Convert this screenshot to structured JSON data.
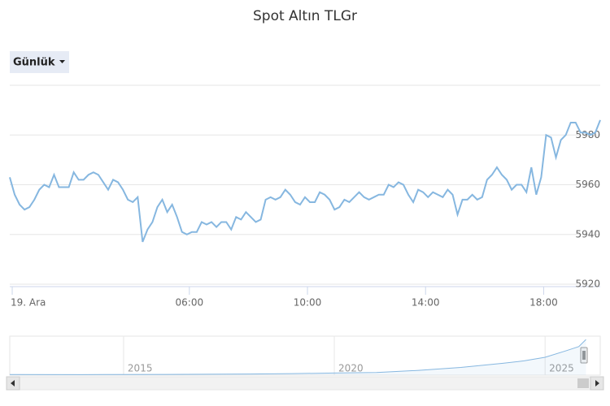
{
  "chart_data": {
    "type": "line",
    "title": "Spot Altın TLGr",
    "range_selector": "Günlük",
    "color": "#86b7e0",
    "x": [
      -5,
      5,
      15,
      25,
      35,
      45,
      55,
      65,
      75,
      85,
      95,
      105,
      115,
      125,
      135,
      145,
      155,
      165,
      175,
      185,
      195,
      205,
      215,
      225,
      235,
      245,
      255,
      265,
      275,
      285,
      295,
      305,
      315,
      325,
      335,
      345,
      355,
      365,
      375,
      385,
      395,
      405,
      415,
      425,
      435,
      445,
      455,
      465,
      475,
      485,
      495,
      505,
      515,
      525,
      535,
      545,
      555,
      565,
      575,
      585,
      595,
      605,
      615,
      625,
      635,
      645,
      655,
      665,
      675,
      685,
      695,
      705,
      715,
      725,
      735,
      745,
      755,
      765,
      775,
      785,
      795,
      805,
      815,
      825,
      835,
      845,
      855,
      865,
      875,
      885,
      895,
      905,
      915,
      925,
      935,
      945,
      955,
      965,
      975,
      985,
      995,
      1005,
      1015,
      1025,
      1035,
      1045,
      1055,
      1065,
      1075,
      1085,
      1095,
      1105,
      1115,
      1125,
      1135,
      1145,
      1155,
      1165,
      1175,
      1185,
      1195
    ],
    "values": [
      5963,
      5956,
      5952,
      5950,
      5951,
      5954,
      5958,
      5960,
      5959,
      5964,
      5959,
      5959,
      5959,
      5965,
      5962,
      5962,
      5964,
      5965,
      5964,
      5961,
      5958,
      5962,
      5961,
      5958,
      5954,
      5953,
      5955,
      5937,
      5942,
      5945,
      5951,
      5954,
      5949,
      5952,
      5947,
      5941,
      5940,
      5941,
      5941,
      5945,
      5944,
      5945,
      5943,
      5945,
      5945,
      5942,
      5947,
      5946,
      5949,
      5947,
      5945,
      5946,
      5954,
      5955,
      5954,
      5955,
      5958,
      5956,
      5953,
      5952,
      5955,
      5953,
      5953,
      5957,
      5956,
      5954,
      5950,
      5951,
      5954,
      5953,
      5955,
      5957,
      5955,
      5954,
      5955,
      5956,
      5956,
      5960,
      5959,
      5961,
      5960,
      5956,
      5953,
      5958,
      5957,
      5955,
      5957,
      5956,
      5955,
      5958,
      5956,
      5948,
      5954,
      5954,
      5956,
      5954,
      5955,
      5962,
      5964,
      5967,
      5964,
      5962,
      5958,
      5960,
      5960,
      5957,
      5967,
      5956,
      5963,
      5980,
      5979,
      5971,
      5978,
      5980,
      5985,
      5985,
      5981,
      5981,
      5980,
      5981,
      5986
    ],
    "xlim": [
      -5,
      1195
    ],
    "xticks": [
      {
        "value": 0,
        "label": "19. Ara"
      },
      {
        "value": 360,
        "label": "06:00"
      },
      {
        "value": 600,
        "label": "10:00"
      },
      {
        "value": 840,
        "label": "14:00"
      },
      {
        "value": 1080,
        "label": "18:00"
      }
    ],
    "ylim": [
      5920,
      6000
    ],
    "yticks": [
      5920,
      5940,
      5960,
      5980
    ],
    "grid": true,
    "navigator": {
      "type": "area",
      "color": "#86b7e0",
      "x": [
        2012.3,
        2014,
        2016,
        2018,
        2019,
        2020,
        2021,
        2022,
        2023,
        2024,
        2024.5,
        2025,
        2025.5,
        2025.8,
        2025.97
      ],
      "values": [
        100,
        90,
        120,
        180,
        260,
        350,
        450,
        800,
        1300,
        2000,
        2400,
        3000,
        4100,
        4800,
        5986
      ],
      "xlim": [
        2012.3,
        2026
      ],
      "ylim": [
        0,
        6000
      ],
      "xticks": [
        2015,
        2020,
        2025
      ]
    }
  }
}
